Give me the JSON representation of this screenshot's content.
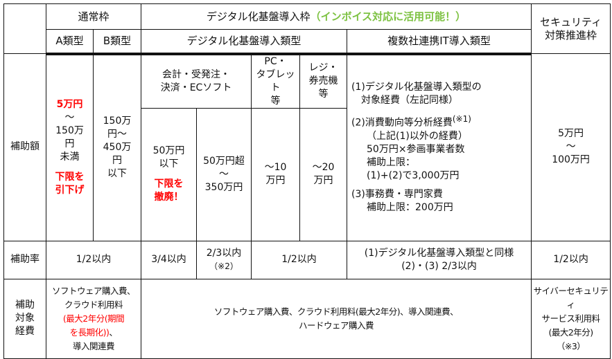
{
  "header": {
    "normal_frame": "通常枠",
    "digital_frame": "デジタル化基盤導入枠",
    "digital_frame_note": "（インボイス対応に活用可能！）",
    "security_frame": [
      "セキュリティ",
      "対策推進枠"
    ],
    "type_a": "A類型",
    "type_b": "B類型",
    "digital_type": "デジタル化基盤導入類型",
    "multi_company_type": "複数社連携IT導入類型",
    "accounting_software": [
      "会計・受発注・",
      "決済・ECソフト"
    ],
    "pc_tablet": [
      "PC・",
      "タブレット",
      "等"
    ],
    "register": [
      "レジ・",
      "券売機",
      "等"
    ]
  },
  "amount_row": {
    "label": "補助額",
    "type_a": {
      "min": "5万円",
      "range": [
        "～",
        "150万",
        "円",
        "未満"
      ],
      "note": [
        "下限を",
        "引下げ"
      ]
    },
    "type_b": [
      "150万",
      "円～",
      "450万",
      "円",
      "以下"
    ],
    "accounting_low": {
      "value": [
        "50万円",
        "以下"
      ],
      "note": [
        "下限を",
        "撤廃！"
      ]
    },
    "accounting_high": [
      "50万円超",
      "～",
      "350万円"
    ],
    "pc_tablet": [
      "～10",
      "万円"
    ],
    "register": [
      "～20",
      "万円"
    ],
    "multi_company": {
      "item1": [
        "(1)デジタル化基盤導入類型の",
        "対象経費（左記同様）"
      ],
      "item2_title": "(2)消費動向等分析経費",
      "item2_note": "(※1)",
      "item2_lines": [
        "（上記(1)以外の経費）",
        "50万円×参画事業者数",
        "補助上限：",
        "(1)+(2)で3,000万円"
      ],
      "item3": [
        "(3)事務費・専門家費",
        "補助上限：200万円"
      ]
    },
    "security": [
      "5万円",
      "～",
      "100万円"
    ]
  },
  "rate_row": {
    "label": "補助率",
    "normal": "1/2以内",
    "accounting_low": "3/4以内",
    "accounting_high": "2/3以内",
    "accounting_high_note": "（※2）",
    "hardware": "1/2以内",
    "multi_company": [
      "(1)デジタル化基盤導入類型と同様",
      "(2)・(3) 2/3以内"
    ],
    "security": "1/2以内"
  },
  "expense_row": {
    "label": [
      "補助",
      "対象",
      "経費"
    ],
    "normal_pre": [
      "ソフトウェア購入費、",
      "クラウド利用料"
    ],
    "normal_red": [
      "(最大2年分(期間",
      "を長期化))"
    ],
    "normal_post": [
      "、",
      "導入関連費"
    ],
    "digital": [
      "ソフトウェア購入費、クラウド利用料(最大2年分)、導入関連費、",
      "ハードウェア購入費"
    ],
    "security": [
      "サイバーセキュリティ",
      "サービス利用料",
      "(最大2年分)",
      "（※3）"
    ]
  },
  "colors": {
    "red": "#ff0000",
    "green": "#7dc242"
  }
}
